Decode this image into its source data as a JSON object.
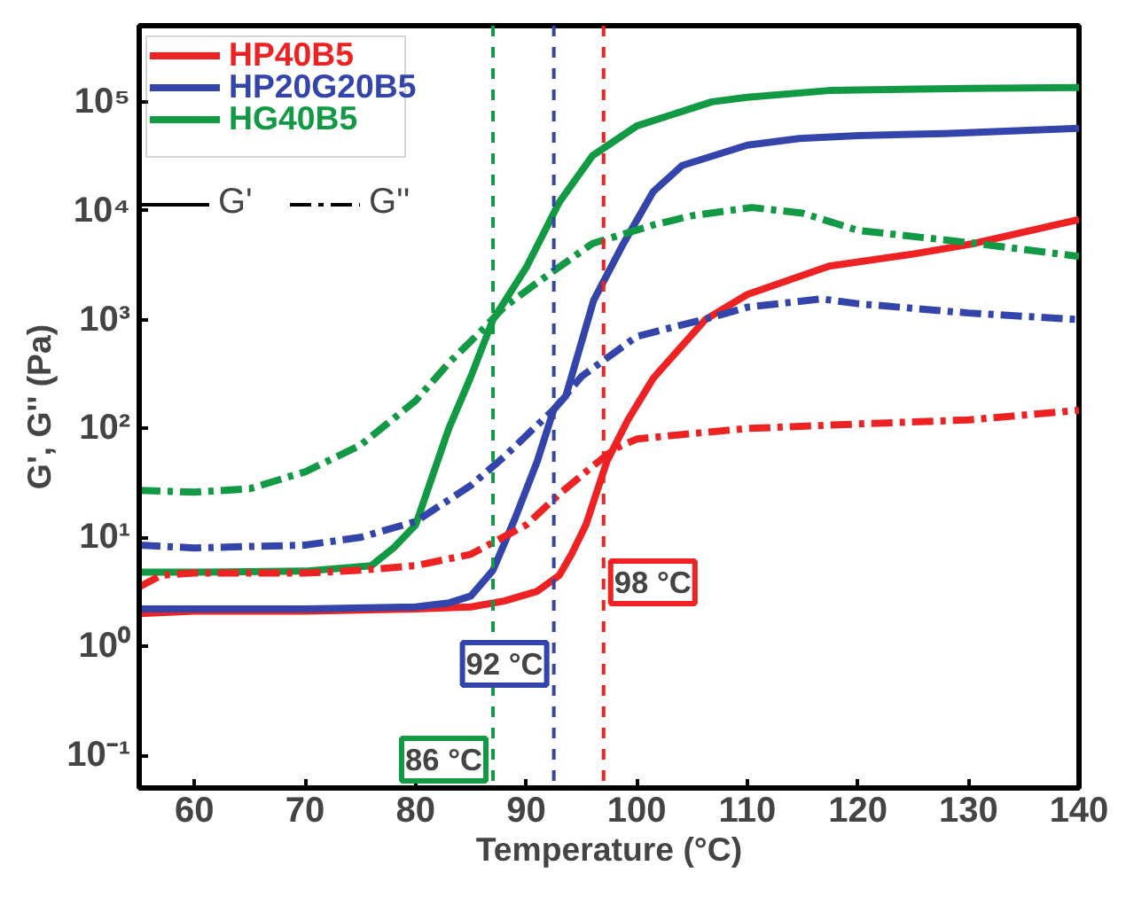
{
  "chart_data": {
    "type": "line",
    "xlabel": "Temperature (°C)",
    "ylabel": "G', G'' (Pa)",
    "log": "y",
    "xlim": [
      55,
      140
    ],
    "xticks": [
      60,
      70,
      80,
      90,
      100,
      110,
      120,
      130,
      140
    ],
    "ylim": [
      0.05,
      500000
    ],
    "yticks": [
      {
        "value": 0.1,
        "label": "10⁻¹"
      },
      {
        "value": 1,
        "label": "10⁰"
      },
      {
        "value": 10,
        "label": "10¹"
      },
      {
        "value": 100,
        "label": "10²"
      },
      {
        "value": 1000,
        "label": "10³"
      },
      {
        "value": 10000,
        "label": "10⁴"
      },
      {
        "value": 100000,
        "label": "10⁵"
      }
    ],
    "grid": false,
    "legend": "top left",
    "annotations": [
      "G'",
      "G''"
    ],
    "series": [
      {
        "name": "HP40B5",
        "color": "#ee2222",
        "line_style": "solid",
        "x": [
          55,
          60,
          70,
          80,
          85,
          88,
          91,
          93,
          94.1,
          95.4,
          97.3,
          99.2,
          101.5,
          106.2,
          110,
          117.4,
          125,
          130.5,
          140
        ],
        "values": [
          2.0,
          2.1,
          2.1,
          2.2,
          2.3,
          2.6,
          3.2,
          4.5,
          7,
          13,
          50,
          120,
          290,
          1000,
          1700,
          3100,
          4000,
          5000,
          8300
        ]
      },
      {
        "name": "HP20G20B5",
        "color": "#3344aa",
        "line_style": "solid",
        "x": [
          55,
          60,
          70,
          80,
          83,
          85,
          87,
          89,
          91,
          92.5,
          93.6,
          96.1,
          98.8,
          101.5,
          104.1,
          110,
          114.7,
          120,
          127.8,
          140
        ],
        "values": [
          2.2,
          2.2,
          2.2,
          2.3,
          2.5,
          2.9,
          5,
          15,
          50,
          150,
          200,
          1500,
          5000,
          15000,
          26000,
          40000,
          46000,
          49000,
          51000,
          57000
        ]
      },
      {
        "name": "HG40B5",
        "color": "#119944",
        "line_style": "solid",
        "x": [
          55,
          60,
          70,
          76,
          78,
          80,
          83,
          85,
          87,
          90,
          93,
          96,
          100,
          106.8,
          110,
          117.4,
          130,
          140
        ],
        "values": [
          4.8,
          4.8,
          4.9,
          5.5,
          8,
          13,
          100,
          300,
          1000,
          3000,
          12000,
          32000,
          60000,
          100000,
          110000,
          127000,
          133000,
          135000
        ]
      },
      {
        "color": "#ee2222",
        "line_style": "dashdot",
        "x": [
          55,
          57,
          60,
          70,
          75,
          80,
          85,
          90,
          93,
          96,
          98,
          100,
          105,
          110,
          120,
          130,
          140
        ],
        "values": [
          3.5,
          4.5,
          4.7,
          4.7,
          5,
          5.5,
          7,
          13,
          25,
          45,
          65,
          80,
          90,
          100,
          110,
          120,
          147
        ]
      },
      {
        "color": "#3344aa",
        "line_style": "dashdot",
        "x": [
          55,
          60,
          70,
          75,
          80,
          85,
          88,
          92.5,
          95,
          100,
          106.8,
          110,
          116.7,
          120,
          130,
          140
        ],
        "values": [
          8.5,
          8,
          8.5,
          10,
          14,
          30,
          55,
          150,
          300,
          700,
          1050,
          1300,
          1550,
          1400,
          1150,
          1000
        ]
      },
      {
        "color": "#119944",
        "line_style": "dashdot",
        "x": [
          55,
          60,
          65,
          70,
          75,
          80,
          83,
          86,
          88,
          90.9,
          96,
          101.5,
          105,
          110.4,
          115,
          120,
          130,
          140
        ],
        "values": [
          27,
          26,
          28,
          40,
          70,
          180,
          400,
          800,
          1300,
          2150,
          5000,
          7400,
          9000,
          10700,
          9500,
          6600,
          5100,
          3800
        ]
      }
    ],
    "ref_lines": [
      {
        "axis": "x",
        "value": 87,
        "label": "86 °C",
        "color": "#119944",
        "line_style": "dashed"
      },
      {
        "axis": "x",
        "value": 92.5,
        "label": "92 °C",
        "color": "#3344aa",
        "line_style": "dashed"
      },
      {
        "axis": "x",
        "value": 97,
        "label": "98 °C",
        "color": "#ee2222",
        "line_style": "dashed"
      }
    ]
  }
}
